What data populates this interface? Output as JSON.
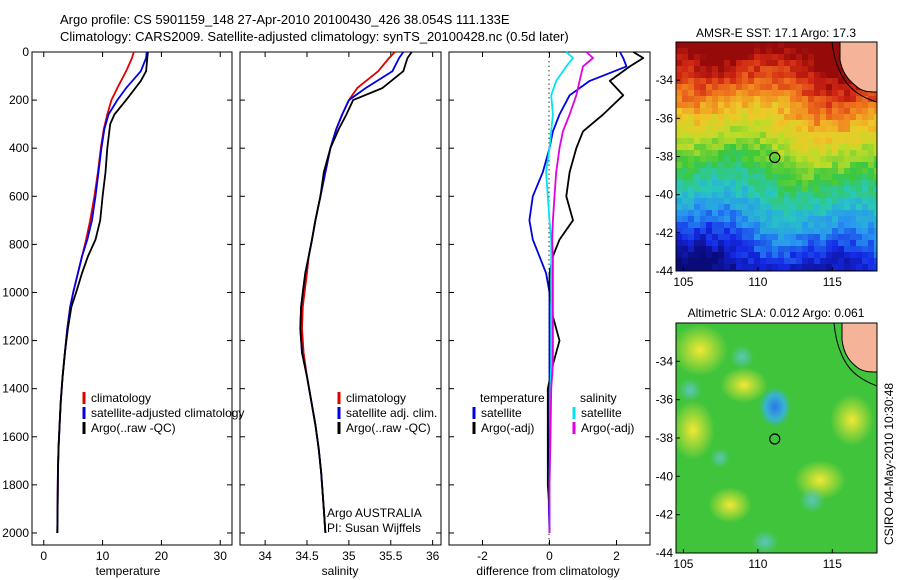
{
  "figure": {
    "title_line1": "Argo profile: CS 5901159_148 27-Apr-2010 20100430_426 38.054S 111.133E",
    "title_line2": "Climatology: CARS2009. Satellite-adjusted climatology: synTS_20100428.nc (0.5d later)",
    "credit": "CSIRO 04-May-2010 10:30:48",
    "footer_line1": "Argo AUSTRALIA",
    "footer_line2": "PI: Susan Wijffels"
  },
  "colors": {
    "red": "#e00000",
    "blue": "#0000e6",
    "black": "#000000",
    "cyan": "#00e5f0",
    "magenta": "#e000e0"
  },
  "chart_data": [
    {
      "type": "line",
      "panel": "temperature",
      "xlabel": "temperature",
      "ylabel": "",
      "xlim": [
        -2,
        32
      ],
      "ylim": [
        2050,
        0
      ],
      "xticks": [
        0,
        10,
        20,
        30
      ],
      "yticks": [
        0,
        200,
        400,
        600,
        800,
        1000,
        1200,
        1400,
        1600,
        1800,
        2000
      ],
      "legend": [
        "climatology",
        "satellite-adjusted climatology",
        "Argo(..raw -QC)"
      ],
      "legend_colors": [
        "red",
        "blue",
        "black"
      ],
      "series": [
        {
          "name": "climatology",
          "color": "red",
          "x": [
            15.3,
            15.0,
            14.0,
            12.5,
            11.5,
            10.8,
            10.2,
            9.7,
            9.2,
            8.6,
            7.9,
            7.2,
            6.5,
            5.8,
            5.0,
            4.5,
            4.0,
            3.6,
            3.2,
            2.9,
            2.7,
            2.5,
            2.4,
            2.35,
            2.3
          ],
          "y": [
            0,
            25,
            80,
            150,
            200,
            260,
            320,
            400,
            500,
            600,
            700,
            780,
            850,
            920,
            1000,
            1060,
            1150,
            1250,
            1350,
            1450,
            1550,
            1650,
            1750,
            1900,
            2000
          ]
        },
        {
          "name": "satellite-adjusted climatology",
          "color": "blue",
          "x": [
            17.5,
            17.4,
            16.5,
            14.0,
            12.5,
            11.0,
            10.3,
            9.8,
            9.3,
            8.8,
            8.2,
            7.4,
            6.5,
            5.8,
            5.0,
            4.5,
            4.0,
            3.6,
            3.2,
            2.9,
            2.7,
            2.5,
            2.4,
            2.35,
            2.3
          ],
          "y": [
            0,
            25,
            80,
            150,
            200,
            260,
            320,
            400,
            500,
            600,
            700,
            780,
            850,
            920,
            1000,
            1060,
            1150,
            1250,
            1350,
            1450,
            1550,
            1650,
            1750,
            1900,
            2000
          ]
        },
        {
          "name": "Argo(..raw -QC)",
          "color": "black",
          "x": [
            17.7,
            17.6,
            17.4,
            16.5,
            14.0,
            12.0,
            11.3,
            10.8,
            10.5,
            10.0,
            9.6,
            8.8,
            7.5,
            6.5,
            5.5,
            4.7,
            4.1,
            3.6,
            3.2,
            2.9,
            2.7,
            2.5,
            2.4,
            2.35,
            2.3
          ],
          "y": [
            0,
            25,
            80,
            120,
            200,
            260,
            300,
            400,
            500,
            600,
            700,
            780,
            850,
            920,
            1000,
            1060,
            1150,
            1250,
            1350,
            1450,
            1550,
            1650,
            1750,
            1900,
            2000
          ]
        }
      ]
    },
    {
      "type": "line",
      "panel": "salinity",
      "xlabel": "salinity",
      "ylabel": "",
      "xlim": [
        33.7,
        36.1
      ],
      "ylim": [
        2050,
        0
      ],
      "xticks": [
        34,
        34.5,
        35,
        35.5,
        36
      ],
      "legend": [
        "climatology",
        "satellite adj. clim.",
        "Argo(..raw -QC)"
      ],
      "legend_colors": [
        "red",
        "blue",
        "black"
      ],
      "series": [
        {
          "name": "climatology",
          "color": "red",
          "x": [
            35.55,
            35.48,
            35.35,
            35.1,
            35.0,
            34.92,
            34.85,
            34.78,
            34.72,
            34.66,
            34.6,
            34.56,
            34.52,
            34.5,
            34.47,
            34.45,
            34.44,
            34.46,
            34.5,
            34.55,
            34.6,
            34.64,
            34.67,
            34.7,
            34.72
          ],
          "y": [
            0,
            25,
            80,
            150,
            200,
            260,
            320,
            400,
            500,
            600,
            700,
            780,
            850,
            920,
            1000,
            1060,
            1150,
            1250,
            1350,
            1450,
            1550,
            1650,
            1750,
            1900,
            2000
          ]
        },
        {
          "name": "satellite adj. clim.",
          "color": "blue",
          "x": [
            35.65,
            35.6,
            35.52,
            35.2,
            35.0,
            34.92,
            34.85,
            34.78,
            34.72,
            34.66,
            34.6,
            34.56,
            34.52,
            34.48,
            34.45,
            34.43,
            34.42,
            34.44,
            34.5,
            34.55,
            34.6,
            34.64,
            34.67,
            34.7,
            34.72
          ],
          "y": [
            0,
            25,
            80,
            150,
            200,
            260,
            320,
            400,
            500,
            600,
            700,
            780,
            850,
            920,
            1000,
            1060,
            1150,
            1250,
            1350,
            1450,
            1550,
            1650,
            1750,
            1900,
            2000
          ]
        },
        {
          "name": "Argo(..raw -QC)",
          "color": "black",
          "x": [
            35.75,
            35.7,
            35.65,
            35.4,
            35.05,
            34.97,
            34.88,
            34.78,
            34.7,
            34.66,
            34.6,
            34.56,
            34.52,
            34.48,
            34.45,
            34.43,
            34.42,
            34.44,
            34.5,
            34.55,
            34.6,
            34.64,
            34.67,
            34.7,
            34.72
          ],
          "y": [
            0,
            25,
            80,
            150,
            200,
            260,
            320,
            400,
            500,
            600,
            700,
            780,
            850,
            920,
            1000,
            1060,
            1150,
            1250,
            1350,
            1450,
            1550,
            1650,
            1750,
            1900,
            2000
          ]
        }
      ]
    },
    {
      "type": "line",
      "panel": "difference",
      "xlabel": "difference from climatology",
      "ylabel": "",
      "xlim": [
        -3,
        3
      ],
      "ylim": [
        2050,
        0
      ],
      "xticks": [
        -2,
        0,
        2
      ],
      "legend_group1_title": "temperature",
      "legend_group1": [
        "satellite",
        "Argo(-adj)"
      ],
      "legend_group1_colors": [
        "blue",
        "black"
      ],
      "legend_group2_title": "salinity",
      "legend_group2": [
        "satellite",
        "Argo(-adj)"
      ],
      "legend_group2_colors": [
        "cyan",
        "magenta"
      ],
      "series": [
        {
          "name": "temperature satellite",
          "color": "blue",
          "x": [
            2.1,
            2.2,
            2.3,
            1.2,
            0.6,
            0.3,
            0.1,
            0.0,
            -0.2,
            -0.5,
            -0.6,
            -0.5,
            -0.3,
            -0.1,
            0.0,
            0.0,
            0.0,
            0.0,
            0.0,
            0.0,
            -0.02,
            -0.02,
            0.0
          ],
          "y": [
            0,
            25,
            60,
            120,
            180,
            260,
            330,
            400,
            500,
            600,
            700,
            780,
            850,
            920,
            1000,
            1100,
            1200,
            1300,
            1400,
            1600,
            1800,
            1900,
            2000
          ]
        },
        {
          "name": "temperature Argo(-adj)",
          "color": "black",
          "x": [
            2.5,
            2.8,
            2.4,
            1.8,
            2.2,
            1.6,
            1.0,
            0.8,
            0.6,
            0.5,
            0.7,
            0.3,
            0.1,
            0.0,
            0.0,
            0.1,
            0.3,
            0.1,
            -0.05,
            -0.05,
            -0.05,
            0.0,
            0.0
          ],
          "y": [
            0,
            25,
            60,
            120,
            180,
            260,
            330,
            400,
            500,
            600,
            700,
            780,
            850,
            920,
            1000,
            1100,
            1200,
            1300,
            1400,
            1600,
            1800,
            1900,
            2000
          ]
        },
        {
          "name": "salinity satellite",
          "color": "cyan",
          "x": [
            0.5,
            0.7,
            0.5,
            0.2,
            0.05,
            0.1,
            0.05,
            0.0,
            -0.1,
            -0.05,
            0.0,
            0.05,
            0.05,
            0.05,
            0.05,
            0.05,
            0.05,
            0.05,
            0.02,
            0.02,
            0.0,
            0.0,
            0.0
          ],
          "y": [
            0,
            25,
            60,
            120,
            180,
            260,
            330,
            400,
            500,
            600,
            700,
            780,
            850,
            920,
            1000,
            1100,
            1200,
            1300,
            1400,
            1600,
            1800,
            1900,
            2000
          ]
        },
        {
          "name": "salinity Argo(-adj)",
          "color": "magenta",
          "x": [
            1.1,
            1.3,
            1.0,
            0.9,
            0.8,
            0.6,
            0.4,
            0.3,
            0.2,
            0.15,
            0.1,
            0.08,
            0.1,
            0.1,
            0.1,
            0.1,
            0.1,
            0.1,
            0.05,
            0.03,
            0.0,
            0.0,
            0.0
          ],
          "y": [
            0,
            25,
            60,
            120,
            180,
            260,
            330,
            400,
            500,
            600,
            700,
            780,
            850,
            920,
            1000,
            1100,
            1200,
            1300,
            1400,
            1600,
            1800,
            1900,
            2000
          ]
        }
      ]
    },
    {
      "type": "heatmap",
      "panel": "sst-map",
      "title": "AMSR-E SST: 17.1 Argo: 17.3",
      "xlim": [
        104.5,
        118
      ],
      "ylim": [
        -44,
        -32
      ],
      "xticks": [
        105,
        110,
        115
      ],
      "yticks": [
        -44,
        -42,
        -40,
        -38,
        -36,
        -34
      ],
      "marker": {
        "lon": 111.133,
        "lat": -38.054
      }
    },
    {
      "type": "heatmap",
      "panel": "sla-map",
      "title": "Altimetric SLA: 0.012 Argo: 0.061",
      "xlim": [
        104.5,
        118
      ],
      "ylim": [
        -44,
        -32
      ],
      "xticks": [
        105,
        110,
        115
      ],
      "yticks": [
        -44,
        -42,
        -40,
        -38,
        -36,
        -34
      ],
      "marker": {
        "lon": 111.133,
        "lat": -38.054
      }
    }
  ]
}
